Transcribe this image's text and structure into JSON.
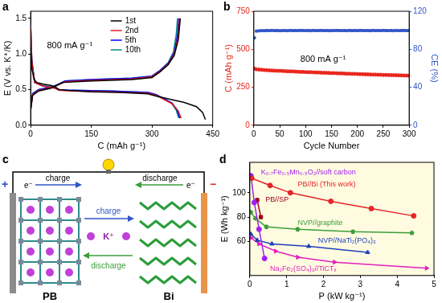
{
  "chart_data": [
    {
      "type": "line",
      "panel_label": "a",
      "xlabel": "C (mAh g⁻¹)",
      "ylabel": "E (V vs. K⁺/K)",
      "annotations": [
        "800 mA g⁻¹"
      ],
      "xlim": [
        0,
        450
      ],
      "xticks": [
        0,
        150,
        300,
        450
      ],
      "ylim": [
        0,
        1.6
      ],
      "yticks": [
        {
          "value": 0,
          "label": "0.0"
        },
        0.5,
        {
          "value": 1,
          "label": "1.0"
        },
        1.5
      ],
      "grid": false,
      "legend": "upper center",
      "series": [
        {
          "name": "1st",
          "color": "#000000",
          "x": [
            0,
            3,
            8,
            15,
            30,
            50,
            60,
            70,
            90,
            150,
            220,
            290,
            310,
            340,
            380,
            410,
            425,
            432,
            null,
            0,
            5,
            20,
            50,
            65,
            80,
            150,
            250,
            300,
            320,
            340,
            355,
            365,
            370
          ],
          "values": [
            1.1,
            0.8,
            0.65,
            0.6,
            0.58,
            0.56,
            0.54,
            0.5,
            0.49,
            0.47,
            0.46,
            0.44,
            0.41,
            0.37,
            0.32,
            0.26,
            0.18,
            0.08,
            null,
            0.2,
            0.42,
            0.48,
            0.52,
            0.56,
            0.6,
            0.62,
            0.64,
            0.67,
            0.75,
            0.85,
            0.98,
            1.2,
            1.5
          ]
        },
        {
          "name": "2nd",
          "color": "#e41a1c",
          "x": [
            0,
            3,
            10,
            30,
            60,
            70,
            100,
            200,
            290,
            310,
            330,
            350,
            365,
            372,
            null,
            0,
            5,
            20,
            55,
            70,
            85,
            150,
            250,
            300,
            320,
            340,
            355,
            365,
            368
          ],
          "values": [
            1.4,
            0.9,
            0.6,
            0.55,
            0.52,
            0.49,
            0.48,
            0.47,
            0.45,
            0.42,
            0.36,
            0.3,
            0.2,
            0.1,
            null,
            0.22,
            0.43,
            0.49,
            0.53,
            0.57,
            0.61,
            0.63,
            0.65,
            0.68,
            0.76,
            0.86,
            1.0,
            1.25,
            1.5
          ]
        },
        {
          "name": "5th",
          "color": "#0000ff",
          "x": [
            0,
            3,
            10,
            30,
            60,
            70,
            100,
            200,
            290,
            310,
            330,
            350,
            362,
            369,
            null,
            0,
            5,
            20,
            55,
            70,
            85,
            150,
            250,
            300,
            320,
            340,
            355,
            363,
            366
          ],
          "values": [
            1.42,
            0.9,
            0.6,
            0.55,
            0.52,
            0.5,
            0.49,
            0.48,
            0.46,
            0.43,
            0.37,
            0.31,
            0.21,
            0.1,
            null,
            0.23,
            0.44,
            0.5,
            0.54,
            0.58,
            0.62,
            0.64,
            0.66,
            0.69,
            0.77,
            0.87,
            1.02,
            1.27,
            1.5
          ]
        },
        {
          "name": "10th",
          "color": "#008b8b",
          "x": [
            0,
            3,
            10,
            30,
            60,
            70,
            100,
            200,
            290,
            310,
            330,
            348,
            360,
            366,
            null,
            0,
            5,
            20,
            55,
            70,
            85,
            150,
            250,
            300,
            320,
            340,
            353,
            360,
            363
          ],
          "values": [
            1.43,
            0.92,
            0.61,
            0.56,
            0.53,
            0.5,
            0.49,
            0.48,
            0.46,
            0.43,
            0.37,
            0.31,
            0.21,
            0.1,
            null,
            0.24,
            0.45,
            0.5,
            0.54,
            0.58,
            0.62,
            0.64,
            0.66,
            0.69,
            0.77,
            0.88,
            1.03,
            1.28,
            1.5
          ]
        }
      ]
    },
    {
      "type": "scatter",
      "panel_label": "b",
      "xlabel": "Cycle Number",
      "ylabel": "C (mAh g⁻¹)",
      "y2label": "CE (%)",
      "annotations": [
        "800 mA g⁻¹"
      ],
      "xlim": [
        0,
        300
      ],
      "xticks": [
        0,
        50,
        100,
        150,
        200,
        250,
        300
      ],
      "ylim": [
        0,
        750
      ],
      "yticks": [
        0,
        250,
        500,
        750
      ],
      "y2lim": [
        0,
        120
      ],
      "y2ticks": [
        0,
        40,
        80,
        120
      ],
      "grid": false,
      "x": [
        1,
        5,
        10,
        15,
        20,
        25,
        30,
        35,
        40,
        45,
        50,
        55,
        60,
        65,
        70,
        75,
        80,
        85,
        90,
        95,
        100,
        105,
        110,
        115,
        120,
        125,
        130,
        135,
        140,
        145,
        150,
        155,
        160,
        165,
        170,
        175,
        180,
        185,
        190,
        195,
        200,
        205,
        210,
        215,
        220,
        225,
        230,
        235,
        240,
        245,
        250,
        255,
        260,
        265,
        270,
        275,
        280,
        285,
        290,
        295,
        300
      ],
      "series": [
        {
          "name": "C",
          "color": "#e8261c",
          "marker": "circle",
          "values": [
            372,
            368,
            366,
            365,
            363,
            362,
            361,
            360,
            359,
            358,
            358,
            357,
            356,
            355,
            355,
            354,
            353,
            352,
            351,
            351,
            350,
            349,
            349,
            348,
            347,
            347,
            346,
            345,
            345,
            344,
            343,
            343,
            342,
            341,
            341,
            340,
            339,
            339,
            338,
            338,
            337,
            336,
            336,
            335,
            335,
            334,
            333,
            333,
            332,
            332,
            331,
            331,
            330,
            330,
            329,
            329,
            328,
            328,
            327,
            327,
            326
          ]
        },
        {
          "name": "CE",
          "color": "#2f55c8",
          "marker": "square",
          "axis": "y2",
          "values": [
            92,
            99.1,
            99.4,
            99.6,
            99.5,
            99.7,
            99.6,
            99.8,
            99.6,
            99.7,
            99.5,
            99.6,
            99.7,
            99.5,
            99.8,
            99.6,
            99.7,
            99.6,
            99.8,
            99.7,
            99.6,
            99.7,
            99.5,
            99.8,
            99.6,
            99.7,
            99.8,
            99.6,
            99.7,
            99.5,
            99.7,
            99.6,
            99.8,
            99.7,
            99.6,
            99.7,
            99.5,
            99.8,
            99.6,
            99.7,
            99.6,
            99.8,
            99.7,
            99.6,
            99.7,
            99.5,
            99.8,
            99.6,
            99.7,
            99.6,
            99.8,
            99.7,
            99.6,
            99.7,
            99.5,
            99.8,
            99.6,
            99.7,
            99.8,
            99.6,
            99.7
          ]
        }
      ]
    },
    {
      "type": "line",
      "panel_label": "d",
      "xlabel": "P (kW kg⁻¹)",
      "ylabel": "E (Wh kg⁻¹)",
      "xlim": [
        0,
        5
      ],
      "xticks": [
        0,
        1,
        2,
        3,
        4,
        5
      ],
      "ylim": [
        32,
        125
      ],
      "yticks": [
        60,
        80,
        100
      ],
      "grid": false,
      "legend": "inline",
      "series": [
        {
          "name": "PB//Bi (This work)",
          "color": "#e4262a",
          "marker": "circle",
          "x": [
            0.05,
            0.55,
            1.1,
            2.2,
            3.3,
            4.45
          ],
          "values": [
            112,
            106,
            100,
            93,
            87,
            81
          ]
        },
        {
          "name": "K₀.₇Fe₀.₅Mn₀.₅O₂//soft carbon",
          "color": "#a020f0",
          "marker": "circle",
          "x": [
            0.03,
            0.12,
            0.25,
            0.4
          ],
          "values": [
            114,
            92,
            70,
            46
          ]
        },
        {
          "name": "PB//SP",
          "color": "#a0001e",
          "marker": "square",
          "x": [
            0.2,
            0.3
          ],
          "values": [
            94,
            80
          ]
        },
        {
          "name": "NVP//graphite",
          "color": "#3c9d3c",
          "marker": "star",
          "x": [
            0.03,
            0.15,
            0.45,
            1.3,
            2.8,
            4.4
          ],
          "values": [
            84,
            79,
            72,
            70,
            68,
            67
          ]
        },
        {
          "name": "NVP//NaTi₂(PO₄)₃",
          "color": "#1f3fbf",
          "marker": "triangle",
          "x": [
            0.03,
            0.2,
            0.6,
            1.6,
            3.2
          ],
          "values": [
            66,
            61,
            58,
            56,
            51
          ]
        },
        {
          "name": "Na₂Fe₂(SO₄)₃//TiCTₓ",
          "color": "#e020c0",
          "marker": "triangle-right",
          "x": [
            0.03,
            0.25,
            0.7,
            1.3,
            2.3,
            4.8
          ],
          "values": [
            63,
            58,
            52,
            47,
            43,
            38
          ]
        }
      ]
    }
  ],
  "diagram": {
    "panel_label": "c",
    "positive": "+",
    "negative": "−",
    "electron": "e⁻",
    "charge": "charge",
    "discharge": "discharge",
    "ion": "K⁺",
    "cathode": "PB",
    "anode": "Bi"
  }
}
